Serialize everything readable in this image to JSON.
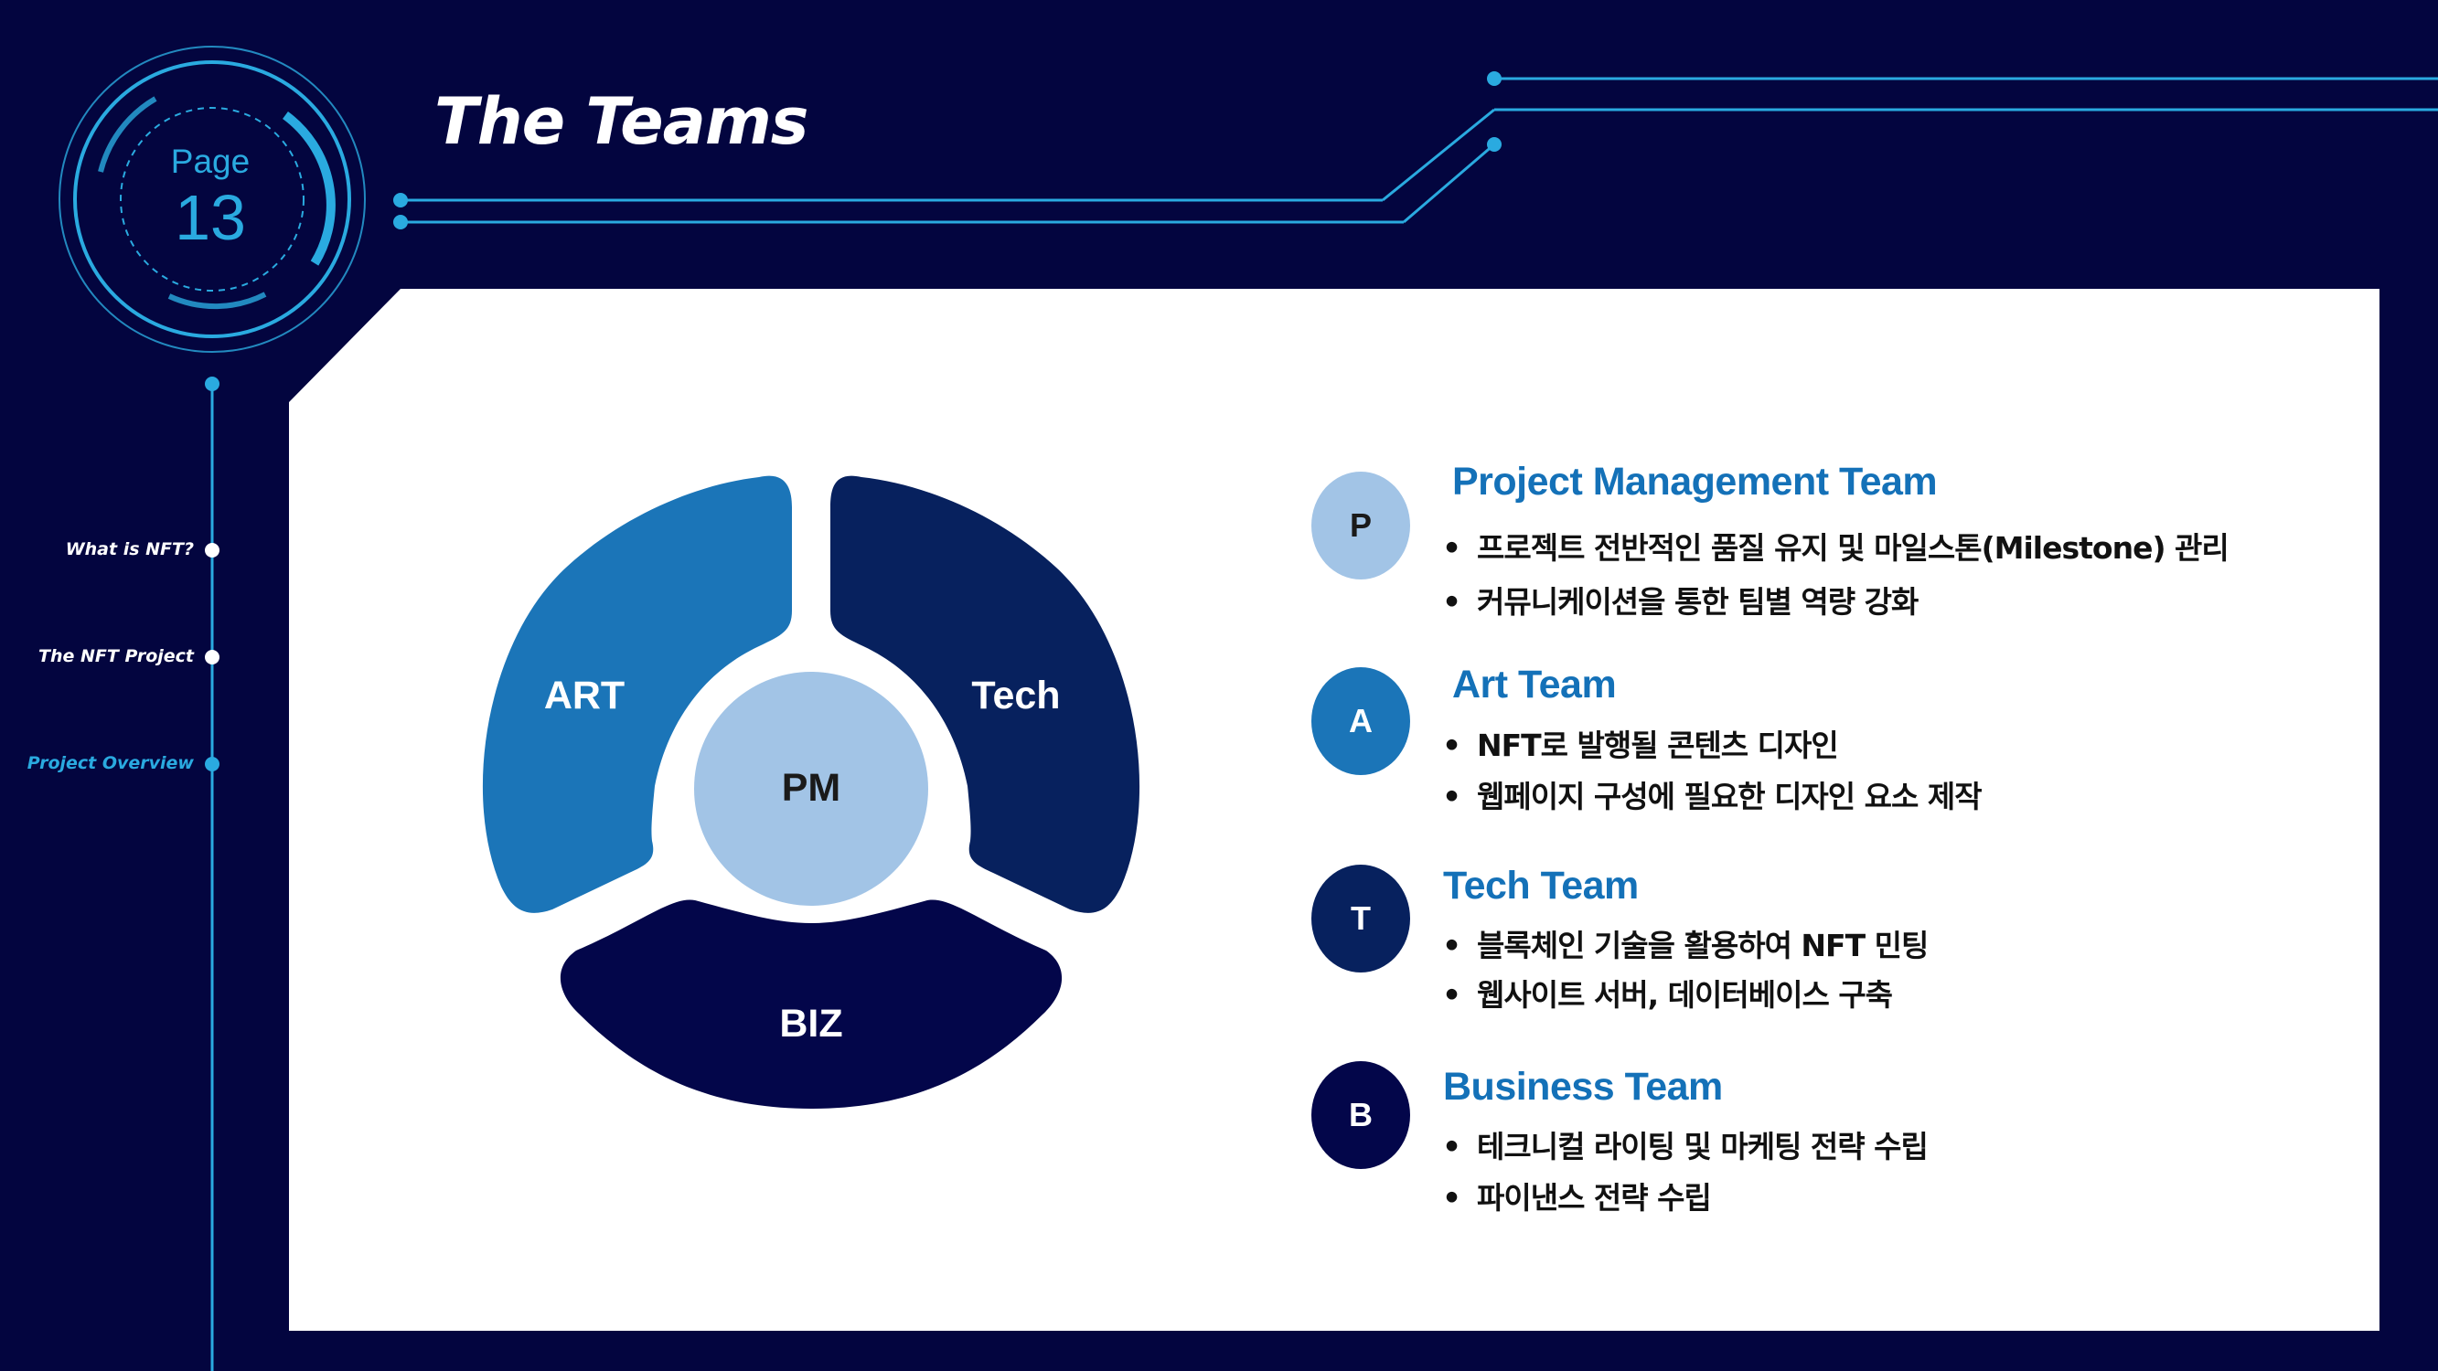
{
  "badge": {
    "label": "Page",
    "number": "13"
  },
  "title": "The Teams",
  "nav": [
    {
      "label": "What is NFT?",
      "active": false
    },
    {
      "label": "The NFT Project",
      "active": false
    },
    {
      "label": "Project Overview",
      "active": true
    }
  ],
  "diagram": {
    "center": "PM",
    "segments": [
      {
        "label": "ART",
        "color": "#1b75b8"
      },
      {
        "label": "Tech",
        "color": "#07215e"
      },
      {
        "label": "BIZ",
        "color": "#03064a"
      }
    ],
    "center_color": "#a2c4e6"
  },
  "teams": [
    {
      "letter": "P",
      "title": "Project Management Team",
      "circle_color": "#a2c4e6",
      "letter_color": "#1a1a1a",
      "bullets": [
        "프로젝트 전반적인 품질 유지 및 마일스톤(Milestone) 관리",
        "커뮤니케이션을 통한 팀별 역량 강화"
      ]
    },
    {
      "letter": "A",
      "title": "Art Team",
      "circle_color": "#1b75b8",
      "letter_color": "#ffffff",
      "bullets": [
        "NFT로 발행될 콘텐츠 디자인",
        "웹페이지 구성에 필요한 디자인 요소 제작"
      ]
    },
    {
      "letter": "T",
      "title": "Tech Team",
      "circle_color": "#07215e",
      "letter_color": "#ffffff",
      "bullets": [
        "블록체인 기술을 활용하여 NFT 민팅",
        "웹사이트 서버, 데이터베이스 구축"
      ]
    },
    {
      "letter": "B",
      "title": "Business Team",
      "circle_color": "#03064a",
      "letter_color": "#ffffff",
      "bullets": [
        "테크니컬 라이팅 및 마케팅 전략 수립",
        "파이낸스 전략 수립"
      ]
    }
  ],
  "colors": {
    "background": "#03053f",
    "accent": "#2aaae0",
    "panel": "#ffffff",
    "title_blue": "#1471b8"
  }
}
